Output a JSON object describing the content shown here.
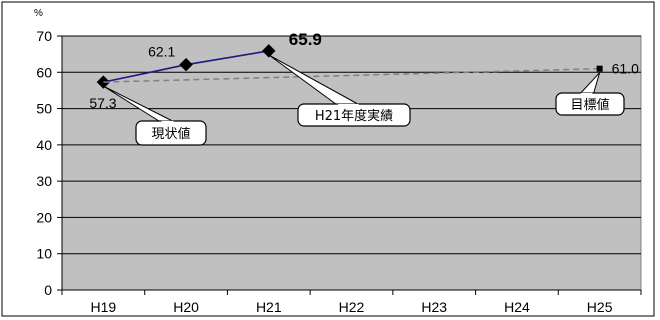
{
  "chart_data": {
    "type": "line",
    "ylabel": "%",
    "ylim": [
      0,
      70
    ],
    "yticks": [
      0,
      10,
      20,
      30,
      40,
      50,
      60,
      70
    ],
    "categories": [
      "H19",
      "H20",
      "H21",
      "H22",
      "H23",
      "H24",
      "H25"
    ],
    "grid": true,
    "series": [
      {
        "values": [
          57.3,
          62.1,
          65.9,
          null,
          null,
          null,
          null
        ],
        "labels": [
          "57.3",
          "62.1",
          "65.9"
        ],
        "color": "#1a1a80",
        "marker": "diamond",
        "style": "solid"
      },
      {
        "values": [
          57.3,
          null,
          null,
          null,
          null,
          null,
          61.0
        ],
        "labels": [
          "",
          "",
          "",
          "",
          "",
          "",
          "61.0"
        ],
        "color": "#808080",
        "marker": "square",
        "style": "dashed"
      }
    ],
    "annotations": [
      {
        "text": "現状値",
        "target": {
          "category": "H19",
          "value": 57.3
        }
      },
      {
        "text": "H21年度実績",
        "target": {
          "category": "H21",
          "value": 65.9
        }
      },
      {
        "text": "目標値",
        "target": {
          "category": "H25",
          "value": 61.0
        }
      }
    ],
    "plot_background": "#c0c0c0"
  }
}
